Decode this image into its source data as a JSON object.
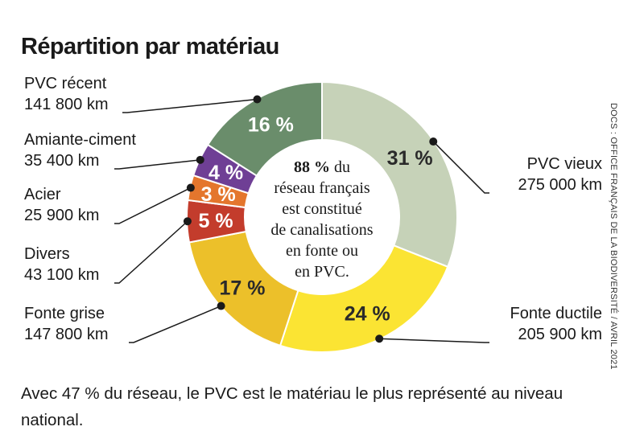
{
  "title": "Répartition par matériau",
  "chart_data": {
    "type": "pie",
    "title": "Répartition par matériau",
    "unit": "%",
    "slices": [
      {
        "name": "PVC vieux",
        "percent": 31,
        "percent_label": "31 %",
        "length_label": "275 000 km",
        "color": "#c6d2b8",
        "text_color": "#2a2a2a"
      },
      {
        "name": "Fonte ductile",
        "percent": 24,
        "percent_label": "24 %",
        "length_label": "205 900 km",
        "color": "#fbe433",
        "text_color": "#2a2a2a"
      },
      {
        "name": "Fonte grise",
        "percent": 17,
        "percent_label": "17 %",
        "length_label": "147 800 km",
        "color": "#ecc02a",
        "text_color": "#2a2a2a"
      },
      {
        "name": "Divers",
        "percent": 5,
        "percent_label": "5 %",
        "length_label": "43 100 km",
        "color": "#c33c2c",
        "text_color": "#ffffff"
      },
      {
        "name": "Acier",
        "percent": 3,
        "percent_label": "3 %",
        "length_label": "25 900 km",
        "color": "#e4762d",
        "text_color": "#ffffff"
      },
      {
        "name": "Amiante-ciment",
        "percent": 4,
        "percent_label": "4 %",
        "length_label": "35 400 km",
        "color": "#6f3f95",
        "text_color": "#ffffff"
      },
      {
        "name": "PVC récent",
        "percent": 16,
        "percent_label": "16 %",
        "length_label": "141 800 km",
        "color": "#6a8d6b",
        "text_color": "#ffffff"
      }
    ],
    "center_text": {
      "strong": "88 %",
      "lines": [
        "du",
        "réseau français",
        "est constitué",
        "de canalisations",
        "en fonte ou",
        "en PVC."
      ]
    }
  },
  "source": "DOCS : OFFICE FRANÇAIS DE LA BIODIVERSITÉ / AVRIL 2021",
  "caption": "Avec 47 % du réseau, le PVC est le matériau le plus représenté au niveau national."
}
